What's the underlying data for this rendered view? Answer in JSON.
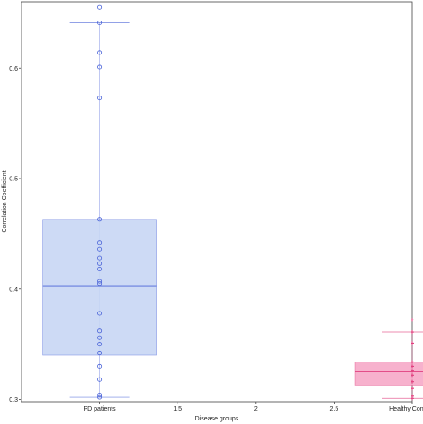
{
  "chart_data": {
    "type": "box",
    "title": "",
    "xlabel": "Disease groups",
    "ylabel": "Correlation Coefficient",
    "xlim": [
      0.5,
      3.0
    ],
    "ylim": [
      0.298,
      0.66
    ],
    "x_ticks": [
      {
        "value": 1,
        "label": "PD patients"
      },
      {
        "value": 1.5,
        "label": "1.5"
      },
      {
        "value": 2,
        "label": "2"
      },
      {
        "value": 2.5,
        "label": "2.5"
      },
      {
        "value": 3,
        "label": "Healthy Controls"
      }
    ],
    "y_ticks": [
      {
        "value": 0.3,
        "label": "0.3"
      },
      {
        "value": 0.4,
        "label": "0.4"
      },
      {
        "value": 0.5,
        "label": "0.5"
      },
      {
        "value": 0.6,
        "label": "0.6"
      }
    ],
    "grid": false,
    "legend": "none",
    "series": [
      {
        "group": "PD patients",
        "x": 1,
        "color": "#4a63d8",
        "fill": "#c8d6f4",
        "stats": {
          "whisker_low": 0.302,
          "q1": 0.34,
          "median": 0.403,
          "q3": 0.463,
          "whisker_high": 0.641
        },
        "points": [
          0.302,
          0.304,
          0.318,
          0.33,
          0.342,
          0.35,
          0.356,
          0.362,
          0.378,
          0.405,
          0.407,
          0.418,
          0.423,
          0.428,
          0.436,
          0.442,
          0.463,
          0.573,
          0.601,
          0.614,
          0.641,
          0.655
        ]
      },
      {
        "group": "Healthy Controls",
        "x": 3,
        "color": "#e0407f",
        "fill": "#f6a9c8",
        "stats": {
          "whisker_low": 0.301,
          "q1": 0.313,
          "median": 0.325,
          "q3": 0.334,
          "whisker_high": 0.361
        },
        "points": [
          0.301,
          0.303,
          0.31,
          0.316,
          0.322,
          0.326,
          0.33,
          0.334,
          0.351,
          0.361,
          0.372
        ]
      }
    ]
  }
}
